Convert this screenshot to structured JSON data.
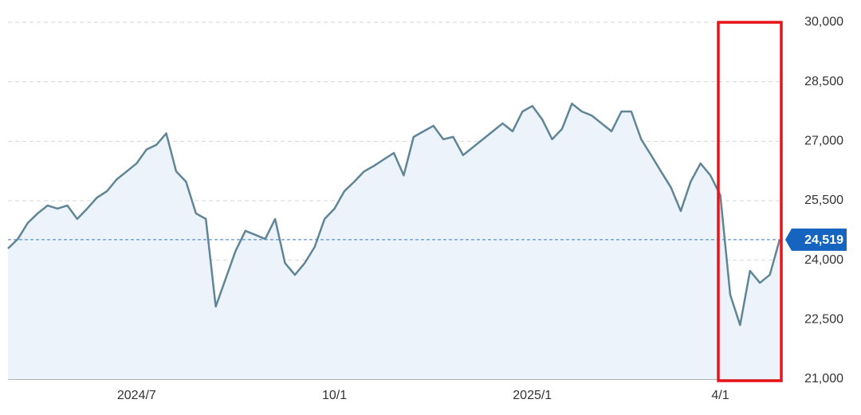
{
  "chart_data": {
    "type": "area",
    "categories": [
      null,
      null,
      null,
      null,
      null,
      null,
      null,
      null,
      null,
      null,
      null,
      null,
      null,
      "2024/7",
      null,
      null,
      null,
      null,
      null,
      null,
      null,
      null,
      null,
      null,
      null,
      null,
      null,
      null,
      null,
      null,
      null,
      null,
      null,
      "10/1",
      null,
      null,
      null,
      null,
      null,
      null,
      null,
      null,
      null,
      null,
      null,
      null,
      null,
      null,
      null,
      null,
      null,
      null,
      null,
      "2025/1",
      null,
      null,
      null,
      null,
      null,
      null,
      null,
      null,
      null,
      null,
      null,
      null,
      null,
      null,
      null,
      null,
      null,
      null,
      "4/1",
      null,
      null,
      null,
      null,
      null,
      null
    ],
    "series": [
      {
        "color": "#5f8597",
        "values": [
          24294,
          24535,
          24940,
          25180,
          25380,
          25300,
          25380,
          25040,
          25300,
          25580,
          25740,
          26040,
          26240,
          26440,
          26790,
          26910,
          27200,
          26240,
          25980,
          25180,
          25040,
          22830,
          23530,
          24230,
          24740,
          24640,
          24535,
          25040,
          23930,
          23630,
          23930,
          24335,
          25040,
          25300,
          25740,
          25980,
          26240,
          26380,
          26545,
          26705,
          26140,
          27110,
          27250,
          27390,
          27050,
          27110,
          26650,
          26850,
          27050,
          27250,
          27450,
          27250,
          27750,
          27890,
          27550,
          27050,
          27310,
          27950,
          27750,
          27650,
          27450,
          27250,
          27750,
          27750,
          27050,
          26650,
          26240,
          25840,
          25240,
          25980,
          26440,
          26140,
          25640,
          23130,
          22365,
          23730,
          23430,
          23630,
          24519
        ]
      }
    ],
    "fill_color": "#edf3fb",
    "ylim": [
      21000,
      30000
    ],
    "yticks": [
      {
        "value": 21000,
        "label": "21,000"
      },
      {
        "value": 22500,
        "label": "22,500"
      },
      {
        "value": 24000,
        "label": "24,000"
      },
      {
        "value": 25500,
        "label": "25,500"
      },
      {
        "value": 27000,
        "label": "27,000"
      },
      {
        "value": 28500,
        "label": "28,500"
      },
      {
        "value": 30000,
        "label": "30,000"
      }
    ],
    "grid": true,
    "last_price": {
      "value": 24519,
      "label": "24,519"
    }
  }
}
